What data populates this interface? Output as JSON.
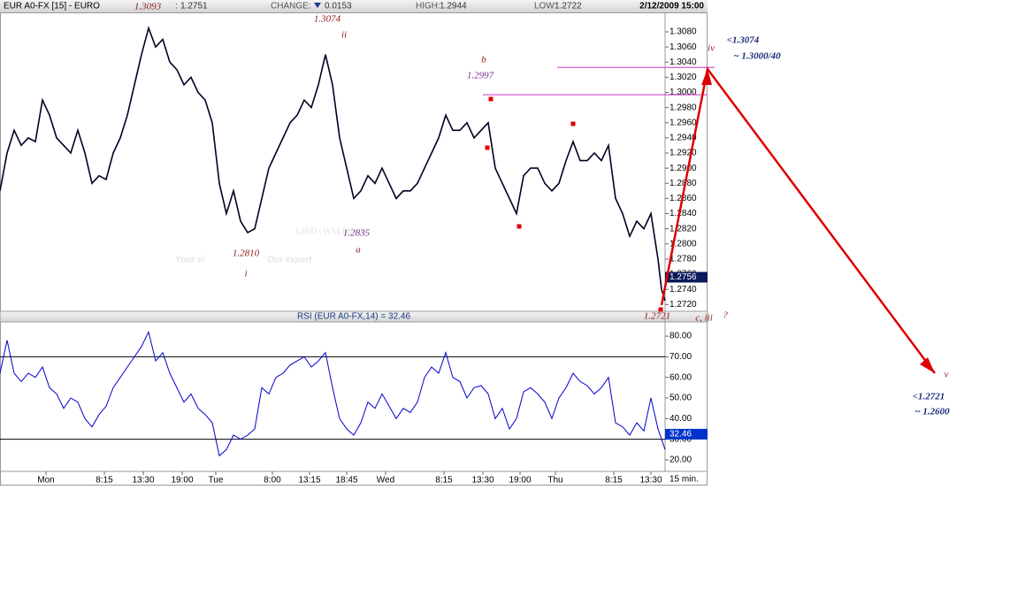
{
  "chart_data": [
    {
      "type": "line",
      "header": {
        "symbol": "EUR A0-FX [15] - EURO",
        "last_label": ":",
        "last": 1.2751,
        "change_label": "CHANGE:",
        "change": 0.0153,
        "high_label": "HIGH:",
        "high": 1.2944,
        "low_label": "LOW:",
        "low": 1.2722,
        "datetime": "2/12/2009 15:00"
      },
      "x": [
        0,
        4,
        8,
        12,
        16,
        20,
        24,
        28,
        32,
        36,
        40,
        44,
        48,
        52,
        56,
        60,
        64,
        68,
        72,
        76,
        80,
        84,
        88,
        92,
        96,
        100,
        104,
        108,
        112,
        116,
        120,
        124,
        128,
        132,
        136,
        140,
        144,
        148,
        152,
        156,
        160,
        164,
        168,
        172,
        176,
        180,
        184,
        188,
        192,
        196,
        200,
        204,
        208,
        212,
        216,
        220,
        224,
        228,
        232,
        236,
        240,
        244,
        248,
        252,
        256,
        260,
        264,
        268,
        272,
        276,
        280,
        284,
        288,
        292,
        296,
        300,
        304,
        308,
        312,
        316,
        320,
        324,
        328,
        332,
        336,
        340,
        344,
        348,
        352,
        356,
        360,
        364,
        368,
        372,
        374,
        376
      ],
      "series": [
        {
          "name": "EUR A0-FX",
          "color": "#000022",
          "values": [
            1.287,
            1.292,
            1.295,
            1.293,
            1.294,
            1.2935,
            1.299,
            1.297,
            1.294,
            1.293,
            1.292,
            1.295,
            1.292,
            1.288,
            1.289,
            1.2885,
            1.292,
            1.294,
            1.297,
            1.301,
            1.305,
            1.3085,
            1.306,
            1.307,
            1.304,
            1.303,
            1.301,
            1.302,
            1.3,
            1.299,
            1.296,
            1.288,
            1.284,
            1.287,
            1.283,
            1.2815,
            1.282,
            1.286,
            1.29,
            1.292,
            1.294,
            1.296,
            1.297,
            1.299,
            1.298,
            1.301,
            1.305,
            1.301,
            1.294,
            1.29,
            1.286,
            1.287,
            1.289,
            1.288,
            1.29,
            1.288,
            1.286,
            1.287,
            1.287,
            1.288,
            1.29,
            1.292,
            1.294,
            1.297,
            1.295,
            1.295,
            1.296,
            1.294,
            1.295,
            1.296,
            1.29,
            1.288,
            1.286,
            1.284,
            1.289,
            1.29,
            1.29,
            1.288,
            1.287,
            1.288,
            1.291,
            1.2935,
            1.291,
            1.291,
            1.292,
            1.291,
            1.293,
            1.286,
            1.284,
            1.281,
            1.283,
            1.282,
            1.284,
            1.278,
            1.274,
            1.2725
          ]
        }
      ],
      "xlim": [
        0,
        376
      ],
      "ylim": [
        1.2711,
        1.3101
      ],
      "yticks": [
        {
          "value": 1.272,
          "label": "1.2720"
        },
        {
          "value": 1.274,
          "label": "1.2740"
        },
        {
          "value": 1.276,
          "label": "1.2760"
        },
        {
          "value": 1.278,
          "label": "1.2780"
        },
        {
          "value": 1.28,
          "label": "1.2800"
        },
        {
          "value": 1.282,
          "label": "1.2820"
        },
        {
          "value": 1.284,
          "label": "1.2840"
        },
        {
          "value": 1.286,
          "label": "1.2860"
        },
        {
          "value": 1.288,
          "label": "1.2880"
        },
        {
          "value": 1.29,
          "label": "1.2900"
        },
        {
          "value": 1.292,
          "label": "1.2920"
        },
        {
          "value": 1.294,
          "label": "1.2940"
        },
        {
          "value": 1.296,
          "label": "1.2960"
        },
        {
          "value": 1.298,
          "label": "1.2980"
        },
        {
          "value": 1.3,
          "label": "1.3000"
        },
        {
          "value": 1.302,
          "label": "1.3020"
        },
        {
          "value": 1.304,
          "label": "1.3040"
        },
        {
          "value": 1.306,
          "label": "1.3060"
        },
        {
          "value": 1.308,
          "label": "1.3080"
        }
      ],
      "last_price": 1.2756,
      "hlines": [
        1.2997,
        1.3033
      ],
      "hline_color": "#cc33cc",
      "watermark": [
        "LIND | WALDOCK",
        "Your vi",
        "Our expert"
      ],
      "annotations": [
        "1.3093",
        "1.3074",
        "ii",
        "b",
        "1.2997",
        "iv",
        "<1.3074",
        "~ 1.3000/40",
        "1.2835",
        "a",
        "1.2810",
        "i",
        "1.2721",
        "c, iii",
        "?",
        "v",
        "<1.2721",
        "~ 1.2600"
      ]
    },
    {
      "type": "line",
      "title": "RSI (EUR A0-FX,14) = 32.46",
      "x": [
        0,
        4,
        8,
        12,
        16,
        20,
        24,
        28,
        32,
        36,
        40,
        44,
        48,
        52,
        56,
        60,
        64,
        68,
        72,
        76,
        80,
        84,
        88,
        92,
        96,
        100,
        104,
        108,
        112,
        116,
        120,
        124,
        128,
        132,
        136,
        140,
        144,
        148,
        152,
        156,
        160,
        164,
        168,
        172,
        176,
        180,
        184,
        188,
        192,
        196,
        200,
        204,
        208,
        212,
        216,
        220,
        224,
        228,
        232,
        236,
        240,
        244,
        248,
        252,
        256,
        260,
        264,
        268,
        272,
        276,
        280,
        284,
        288,
        292,
        296,
        300,
        304,
        308,
        312,
        316,
        320,
        324,
        328,
        332,
        336,
        340,
        344,
        348,
        352,
        356,
        360,
        364,
        368,
        372,
        374,
        376
      ],
      "series": [
        {
          "name": "RSI",
          "color": "#0000cc",
          "values": [
            62,
            78,
            62,
            58,
            62,
            60,
            65,
            55,
            52,
            45,
            50,
            48,
            40,
            36,
            42,
            46,
            55,
            60,
            65,
            70,
            75,
            82,
            68,
            72,
            62,
            55,
            48,
            52,
            45,
            42,
            38,
            22,
            25,
            32,
            30,
            32,
            35,
            55,
            52,
            60,
            62,
            66,
            68,
            70,
            65,
            68,
            72,
            55,
            40,
            35,
            32,
            38,
            48,
            45,
            52,
            46,
            40,
            45,
            43,
            48,
            60,
            65,
            62,
            72,
            60,
            58,
            50,
            55,
            56,
            52,
            40,
            45,
            35,
            40,
            53,
            55,
            52,
            48,
            40,
            50,
            55,
            62,
            58,
            56,
            52,
            55,
            60,
            38,
            36,
            32,
            38,
            34,
            50,
            35,
            30,
            25
          ]
        }
      ],
      "xlim": [
        0,
        376
      ],
      "ylim": [
        14.4,
        86.9
      ],
      "yticks": [
        {
          "value": 20,
          "label": "20.00"
        },
        {
          "value": 30,
          "label": "30.00"
        },
        {
          "value": 40,
          "label": "40.00"
        },
        {
          "value": 50,
          "label": "50.00"
        },
        {
          "value": 60,
          "label": "60.00"
        },
        {
          "value": 70,
          "label": "70.00"
        },
        {
          "value": 80,
          "label": "80.00"
        }
      ],
      "hlines": [
        70,
        30
      ],
      "current": 32.46,
      "xticks": [
        {
          "value": 26,
          "label": "Mon"
        },
        {
          "value": 59,
          "label": "8:15"
        },
        {
          "value": 81,
          "label": "13:30"
        },
        {
          "value": 103,
          "label": "19:00"
        },
        {
          "value": 122,
          "label": "Tue"
        },
        {
          "value": 154,
          "label": "8:00"
        },
        {
          "value": 175,
          "label": "13:15"
        },
        {
          "value": 196,
          "label": "18:45"
        },
        {
          "value": 218,
          "label": "Wed"
        },
        {
          "value": 251,
          "label": "8:15"
        },
        {
          "value": 273,
          "label": "13:30"
        },
        {
          "value": 294,
          "label": "19:00"
        },
        {
          "value": 314,
          "label": "Thu"
        },
        {
          "value": 347,
          "label": "8:15"
        },
        {
          "value": 368,
          "label": "13:30"
        }
      ],
      "xlabel": "15 min."
    }
  ]
}
